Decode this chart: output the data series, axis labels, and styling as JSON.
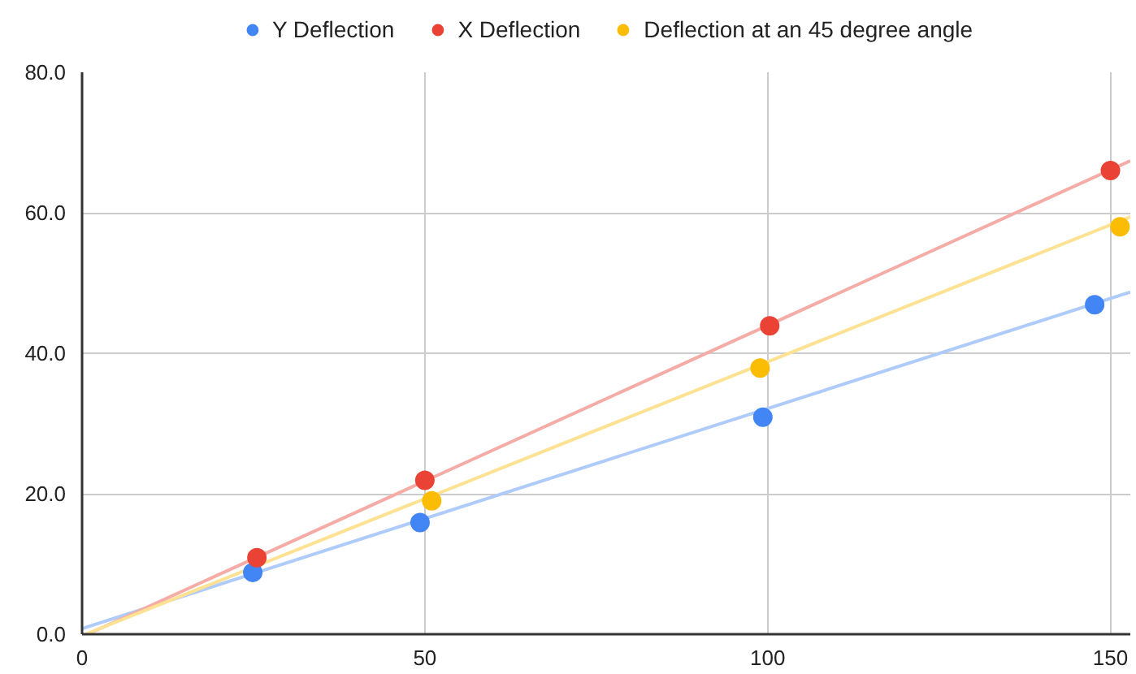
{
  "chart_data": {
    "type": "scatter",
    "series": [
      {
        "name": "Y Deflection",
        "color": "#4285f4",
        "x": [
          24.9,
          49.3,
          99.3,
          147.7
        ],
        "values": [
          8.8,
          15.9,
          30.9,
          46.9
        ]
      },
      {
        "name": "X Deflection",
        "color": "#ea4335",
        "x": [
          25.5,
          50.0,
          100.3,
          150.0
        ],
        "values": [
          10.9,
          21.9,
          43.9,
          66.0
        ]
      },
      {
        "name": "Deflection at an 45 degree angle",
        "color": "#fbbc04",
        "x": [
          51.0,
          98.9,
          151.4
        ],
        "values": [
          19.0,
          37.9,
          58.0
        ]
      },
      {
        "type": "line",
        "marker": "none",
        "color": "#aecbfa",
        "x": [
          0,
          152.9
        ],
        "values": [
          0.8,
          48.7
        ]
      },
      {
        "type": "line",
        "marker": "none",
        "color": "#f5aca6",
        "x": [
          0.8,
          152.9
        ],
        "values": [
          0,
          67.4
        ]
      },
      {
        "type": "line",
        "marker": "none",
        "color": "#fde293",
        "x": [
          0.5,
          152.9
        ],
        "values": [
          0,
          59.4
        ]
      }
    ],
    "xlim": [
      0,
      152.9
    ],
    "ylim": [
      0,
      80
    ],
    "xticks": [
      0,
      50,
      100,
      150
    ],
    "yticks": [
      {
        "value": 0,
        "label": "0.0"
      },
      {
        "value": 20,
        "label": "20.0"
      },
      {
        "value": 40,
        "label": "40.0"
      },
      {
        "value": 60,
        "label": "60.0"
      },
      {
        "value": 80,
        "label": "80.0"
      }
    ],
    "grid": true,
    "legend": "top",
    "marker": "circle"
  }
}
